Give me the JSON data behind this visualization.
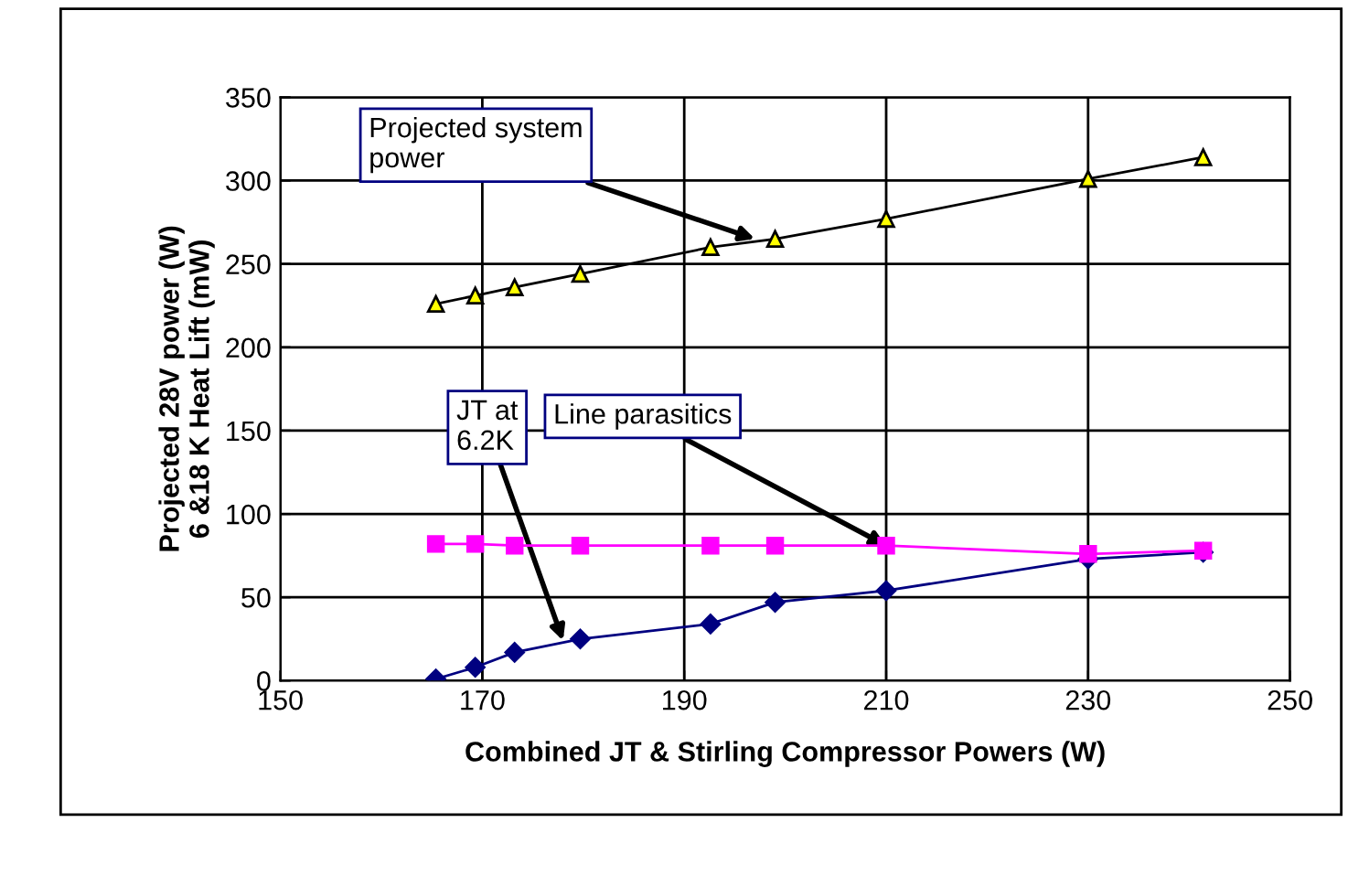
{
  "chart_data": {
    "type": "line",
    "xlabel": "Combined JT & Stirling Compressor Powers (W)",
    "ylabel": "Projected 28V power (W)\n6 &18 K Heat Lift (mW)",
    "x": [
      165.4,
      169.3,
      173.2,
      179.7,
      192.6,
      199,
      210,
      230,
      241.4
    ],
    "series": [
      {
        "color": "#000000",
        "marker": "triangle",
        "values": [
          226,
          231,
          236,
          244,
          260,
          265,
          277,
          301,
          314
        ]
      },
      {
        "color": "#ff00ff",
        "marker": "square",
        "values": [
          82,
          82,
          81,
          81,
          81,
          81,
          81,
          76,
          78
        ]
      },
      {
        "color": "#000080",
        "marker": "diamond",
        "values": [
          1,
          8,
          17,
          25,
          34,
          47,
          54,
          73,
          77
        ]
      }
    ],
    "xlim": [
      150,
      250
    ],
    "xticks": [
      150,
      170,
      190,
      210,
      230,
      250
    ],
    "ylim": [
      0,
      350
    ],
    "yticks": [
      0,
      50,
      100,
      150,
      200,
      250,
      300,
      350
    ],
    "grid": true,
    "legend": false,
    "line_style": "solid",
    "annotations": [
      {
        "text": "Projected system\npower",
        "x": 197,
        "y": 265
      },
      {
        "text": "JT at\n6.2K",
        "x": 178,
        "y": 24
      },
      {
        "text": "Line parasitics",
        "x": 210,
        "y": 81
      }
    ]
  }
}
